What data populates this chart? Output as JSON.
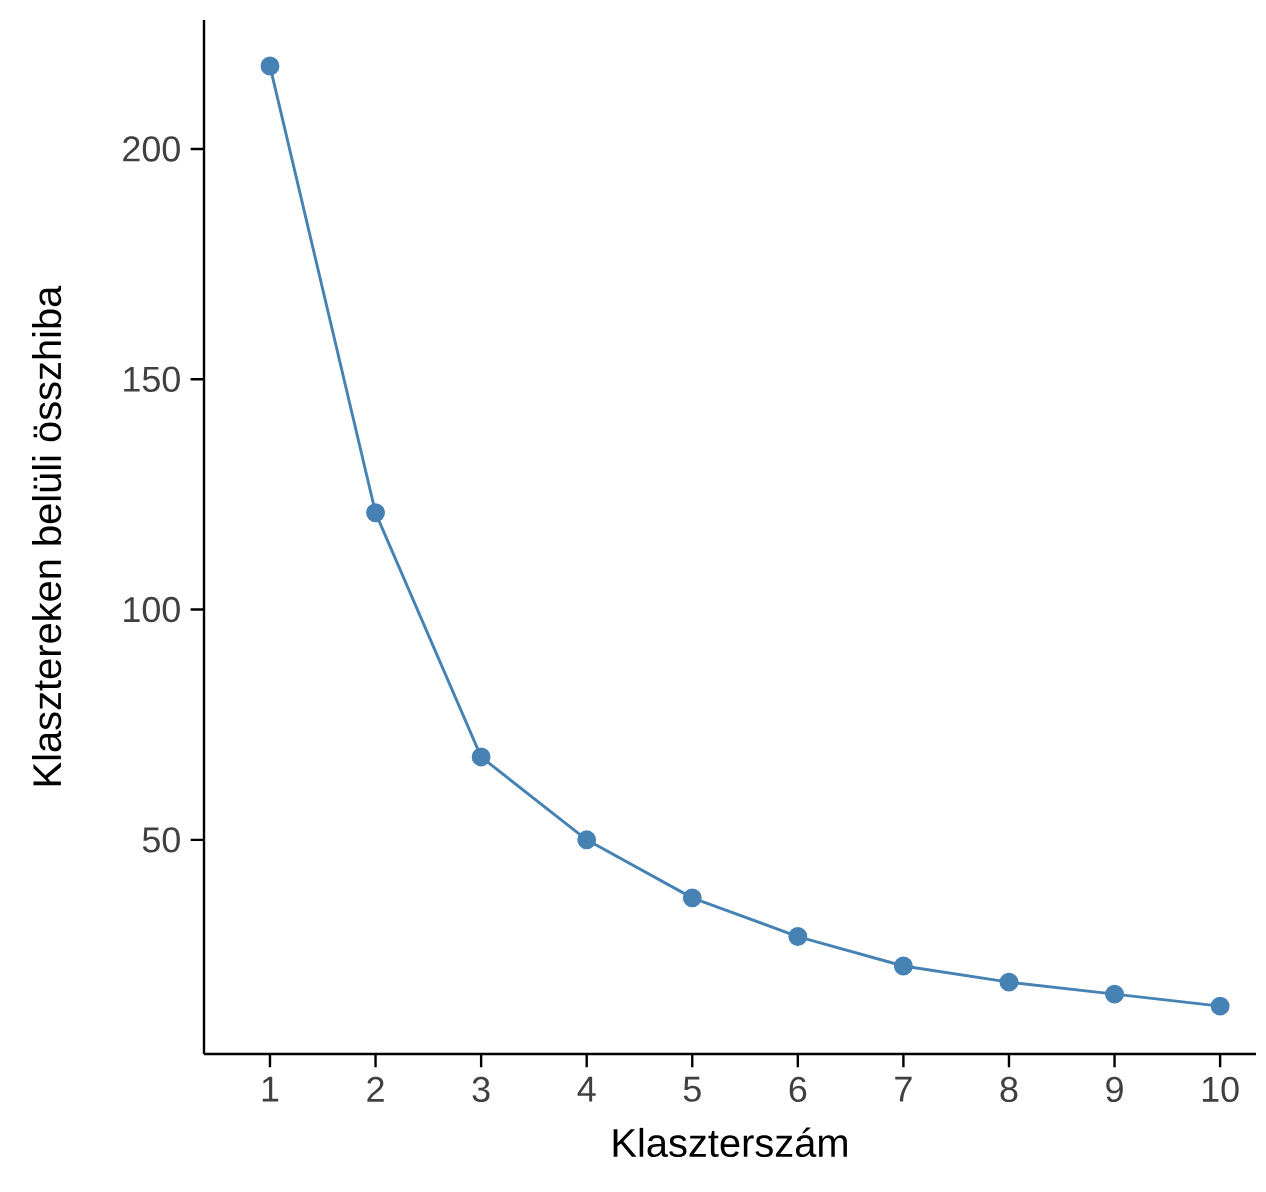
{
  "chart_data": {
    "type": "line",
    "xlabel": "Klaszterszám",
    "ylabel": "Klasztereken belüli összhiba",
    "x": [
      1,
      2,
      3,
      4,
      5,
      6,
      7,
      8,
      9,
      10
    ],
    "series": [
      {
        "color": "#4682b4",
        "values": [
          218,
          121,
          68,
          50,
          37.4,
          29,
          22.6,
          19.1,
          16.5,
          13.9
        ]
      }
    ],
    "xlim": [
      0.375,
      10.34
    ],
    "ylim": [
      3.5,
      228
    ],
    "xticks": [
      1,
      2,
      3,
      4,
      5,
      6,
      7,
      8,
      9,
      10
    ],
    "yticks": [
      50,
      100,
      150,
      200
    ],
    "marker": "circle",
    "line_style": "solid"
  }
}
